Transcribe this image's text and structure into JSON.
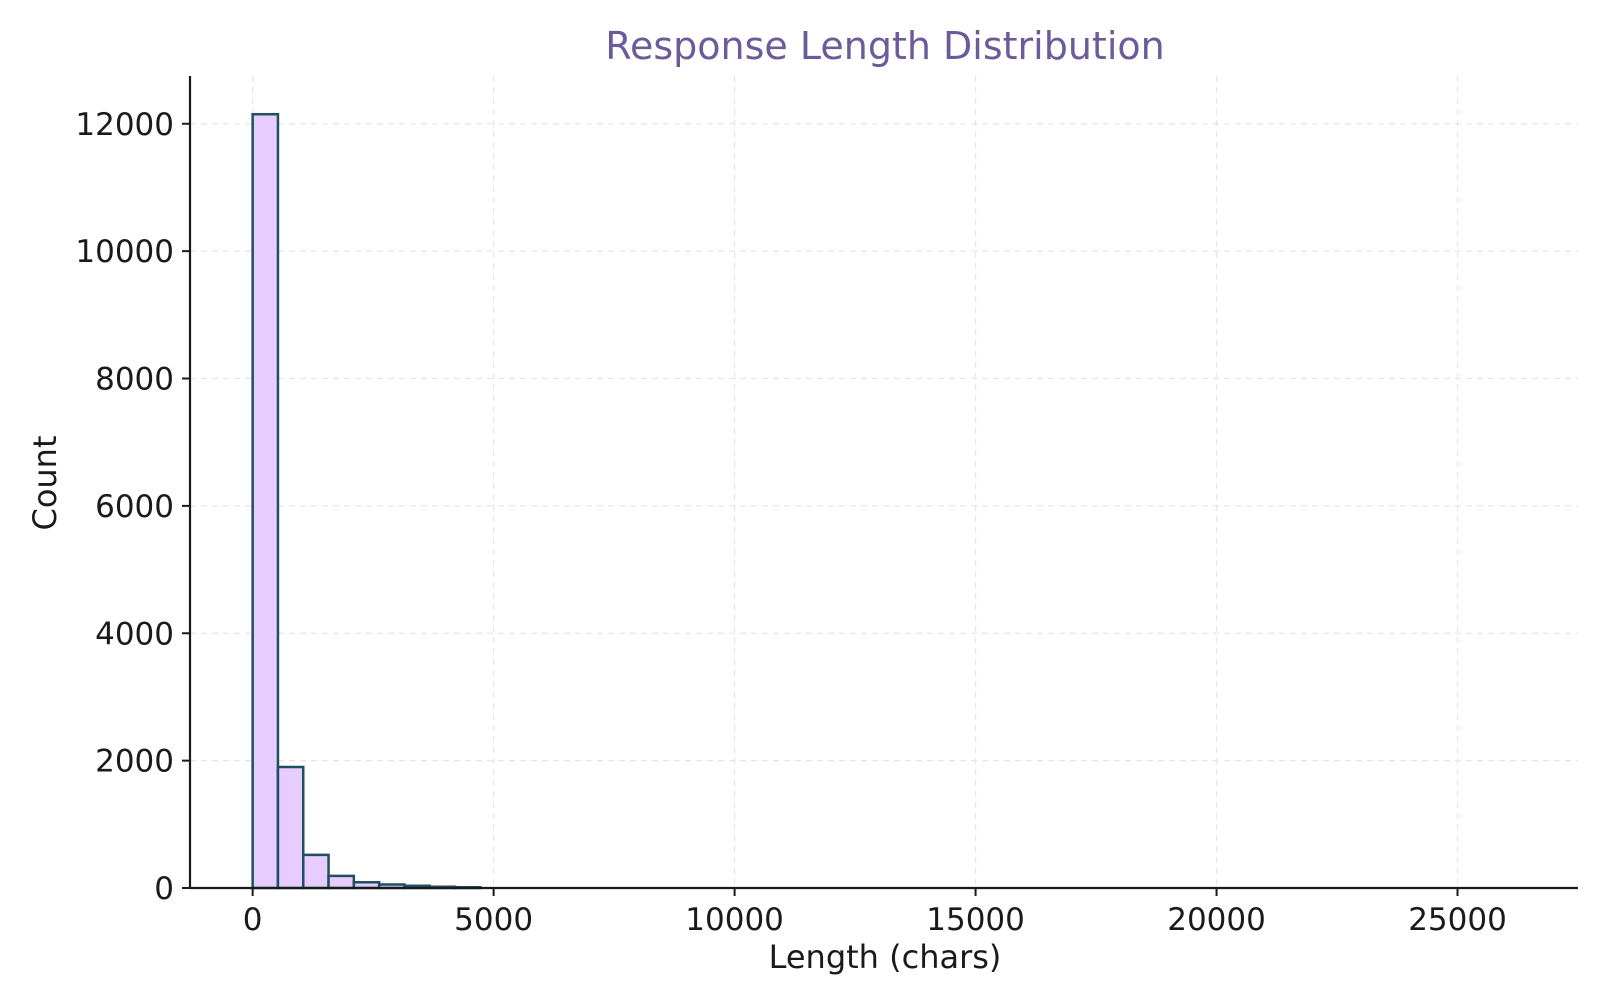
{
  "colors": {
    "title": "#6b5b9a",
    "bar_fill": "#e6ccff",
    "bar_edge": "#1f5060",
    "axis": "#1a1a1a",
    "grid": "#e6e6e6"
  },
  "chart_data": {
    "type": "bar",
    "title": "Response Length Distribution",
    "xlabel": "Length (chars)",
    "ylabel": "Count",
    "xlim": [
      -1300,
      27500
    ],
    "ylim": [
      0,
      12750
    ],
    "xticks": [
      0,
      5000,
      10000,
      15000,
      20000,
      25000
    ],
    "yticks": [
      0,
      2000,
      4000,
      6000,
      8000,
      10000,
      12000
    ],
    "grid": true,
    "bin_width": 525,
    "bins": [
      {
        "x0": 0,
        "x1": 525,
        "count": 12150
      },
      {
        "x0": 525,
        "x1": 1050,
        "count": 1900
      },
      {
        "x0": 1050,
        "x1": 1575,
        "count": 520
      },
      {
        "x0": 1575,
        "x1": 2100,
        "count": 190
      },
      {
        "x0": 2100,
        "x1": 2625,
        "count": 90
      },
      {
        "x0": 2625,
        "x1": 3150,
        "count": 55
      },
      {
        "x0": 3150,
        "x1": 3675,
        "count": 35
      },
      {
        "x0": 3675,
        "x1": 4200,
        "count": 20
      },
      {
        "x0": 4200,
        "x1": 4725,
        "count": 12
      }
    ]
  }
}
